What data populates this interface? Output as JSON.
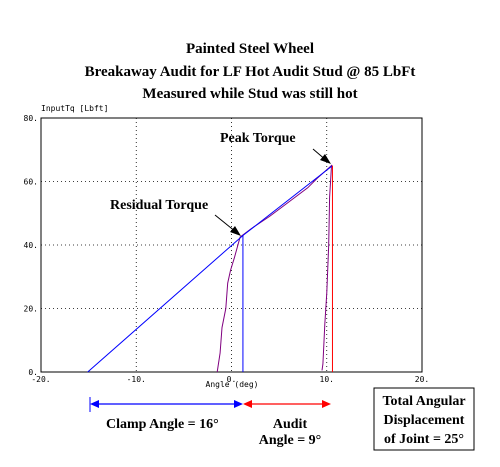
{
  "chart_data": {
    "type": "line",
    "title_lines": [
      "Painted Steel Wheel",
      "Breakaway Audit for LF Hot Audit Stud @ 85 LbFt",
      "Measured while Stud was still hot"
    ],
    "ylabel": "InputTq [Lbft]",
    "xlabel": "Angle (deg)",
    "xlim": [
      -20,
      20
    ],
    "ylim": [
      0,
      80
    ],
    "x_ticks": [
      -20,
      -10,
      0,
      10,
      20
    ],
    "x_tick_labels": [
      "-20.",
      "-10.",
      "0.",
      "10.",
      "20."
    ],
    "y_ticks": [
      0,
      20,
      40,
      60,
      80
    ],
    "y_tick_labels": [
      "0.",
      "20.",
      "40.",
      "60.",
      "80."
    ],
    "grid": true,
    "series": [
      {
        "role": "measured-torque-curve",
        "color": "#800080",
        "points": [
          [
            -1.5,
            0
          ],
          [
            -1.2,
            6
          ],
          [
            -1.0,
            14
          ],
          [
            -0.6,
            20
          ],
          [
            -0.4,
            28
          ],
          [
            -0.1,
            32
          ],
          [
            0.3,
            36
          ],
          [
            0.9,
            42.5
          ],
          [
            2,
            45
          ],
          [
            4,
            49
          ],
          [
            6,
            53.5
          ],
          [
            8,
            58
          ],
          [
            9,
            61
          ],
          [
            10.5,
            65
          ],
          [
            10.3,
            55
          ],
          [
            10.2,
            40
          ],
          [
            10.0,
            25
          ],
          [
            9.8,
            15
          ],
          [
            9.7,
            9
          ],
          [
            9.6,
            2.5
          ],
          [
            9.5,
            0.5
          ]
        ]
      },
      {
        "role": "clamp-reference-line",
        "color": "#0000ff",
        "points": [
          [
            -15.1,
            0
          ],
          [
            1.2,
            43
          ],
          [
            10.6,
            65
          ]
        ]
      }
    ],
    "markers": [
      {
        "role": "residual-vertical",
        "color": "#0000ff",
        "x": 1.2,
        "y_from": 0,
        "y_to": 43
      },
      {
        "role": "peak-vertical",
        "color": "#ff0000",
        "x": 10.6,
        "y_from": 0,
        "y_to": 65
      }
    ],
    "annotations": [
      {
        "text": "Peak Torque",
        "arrow_to": [
          10.4,
          65.5
        ]
      },
      {
        "text": "Residual Torque",
        "arrow_to": [
          1.1,
          43.5
        ]
      },
      {
        "text": "Clamp Angle = 16°",
        "span": [
          -15.1,
          1.2
        ],
        "color": "#0000ff"
      },
      {
        "text_lines": [
          "Audit",
          "Angle = 9°"
        ],
        "span": [
          1.2,
          10.6
        ],
        "color": "#ff0000"
      }
    ],
    "box_note": [
      "Total Angular",
      "Displacement",
      "of Joint = 25°"
    ]
  }
}
